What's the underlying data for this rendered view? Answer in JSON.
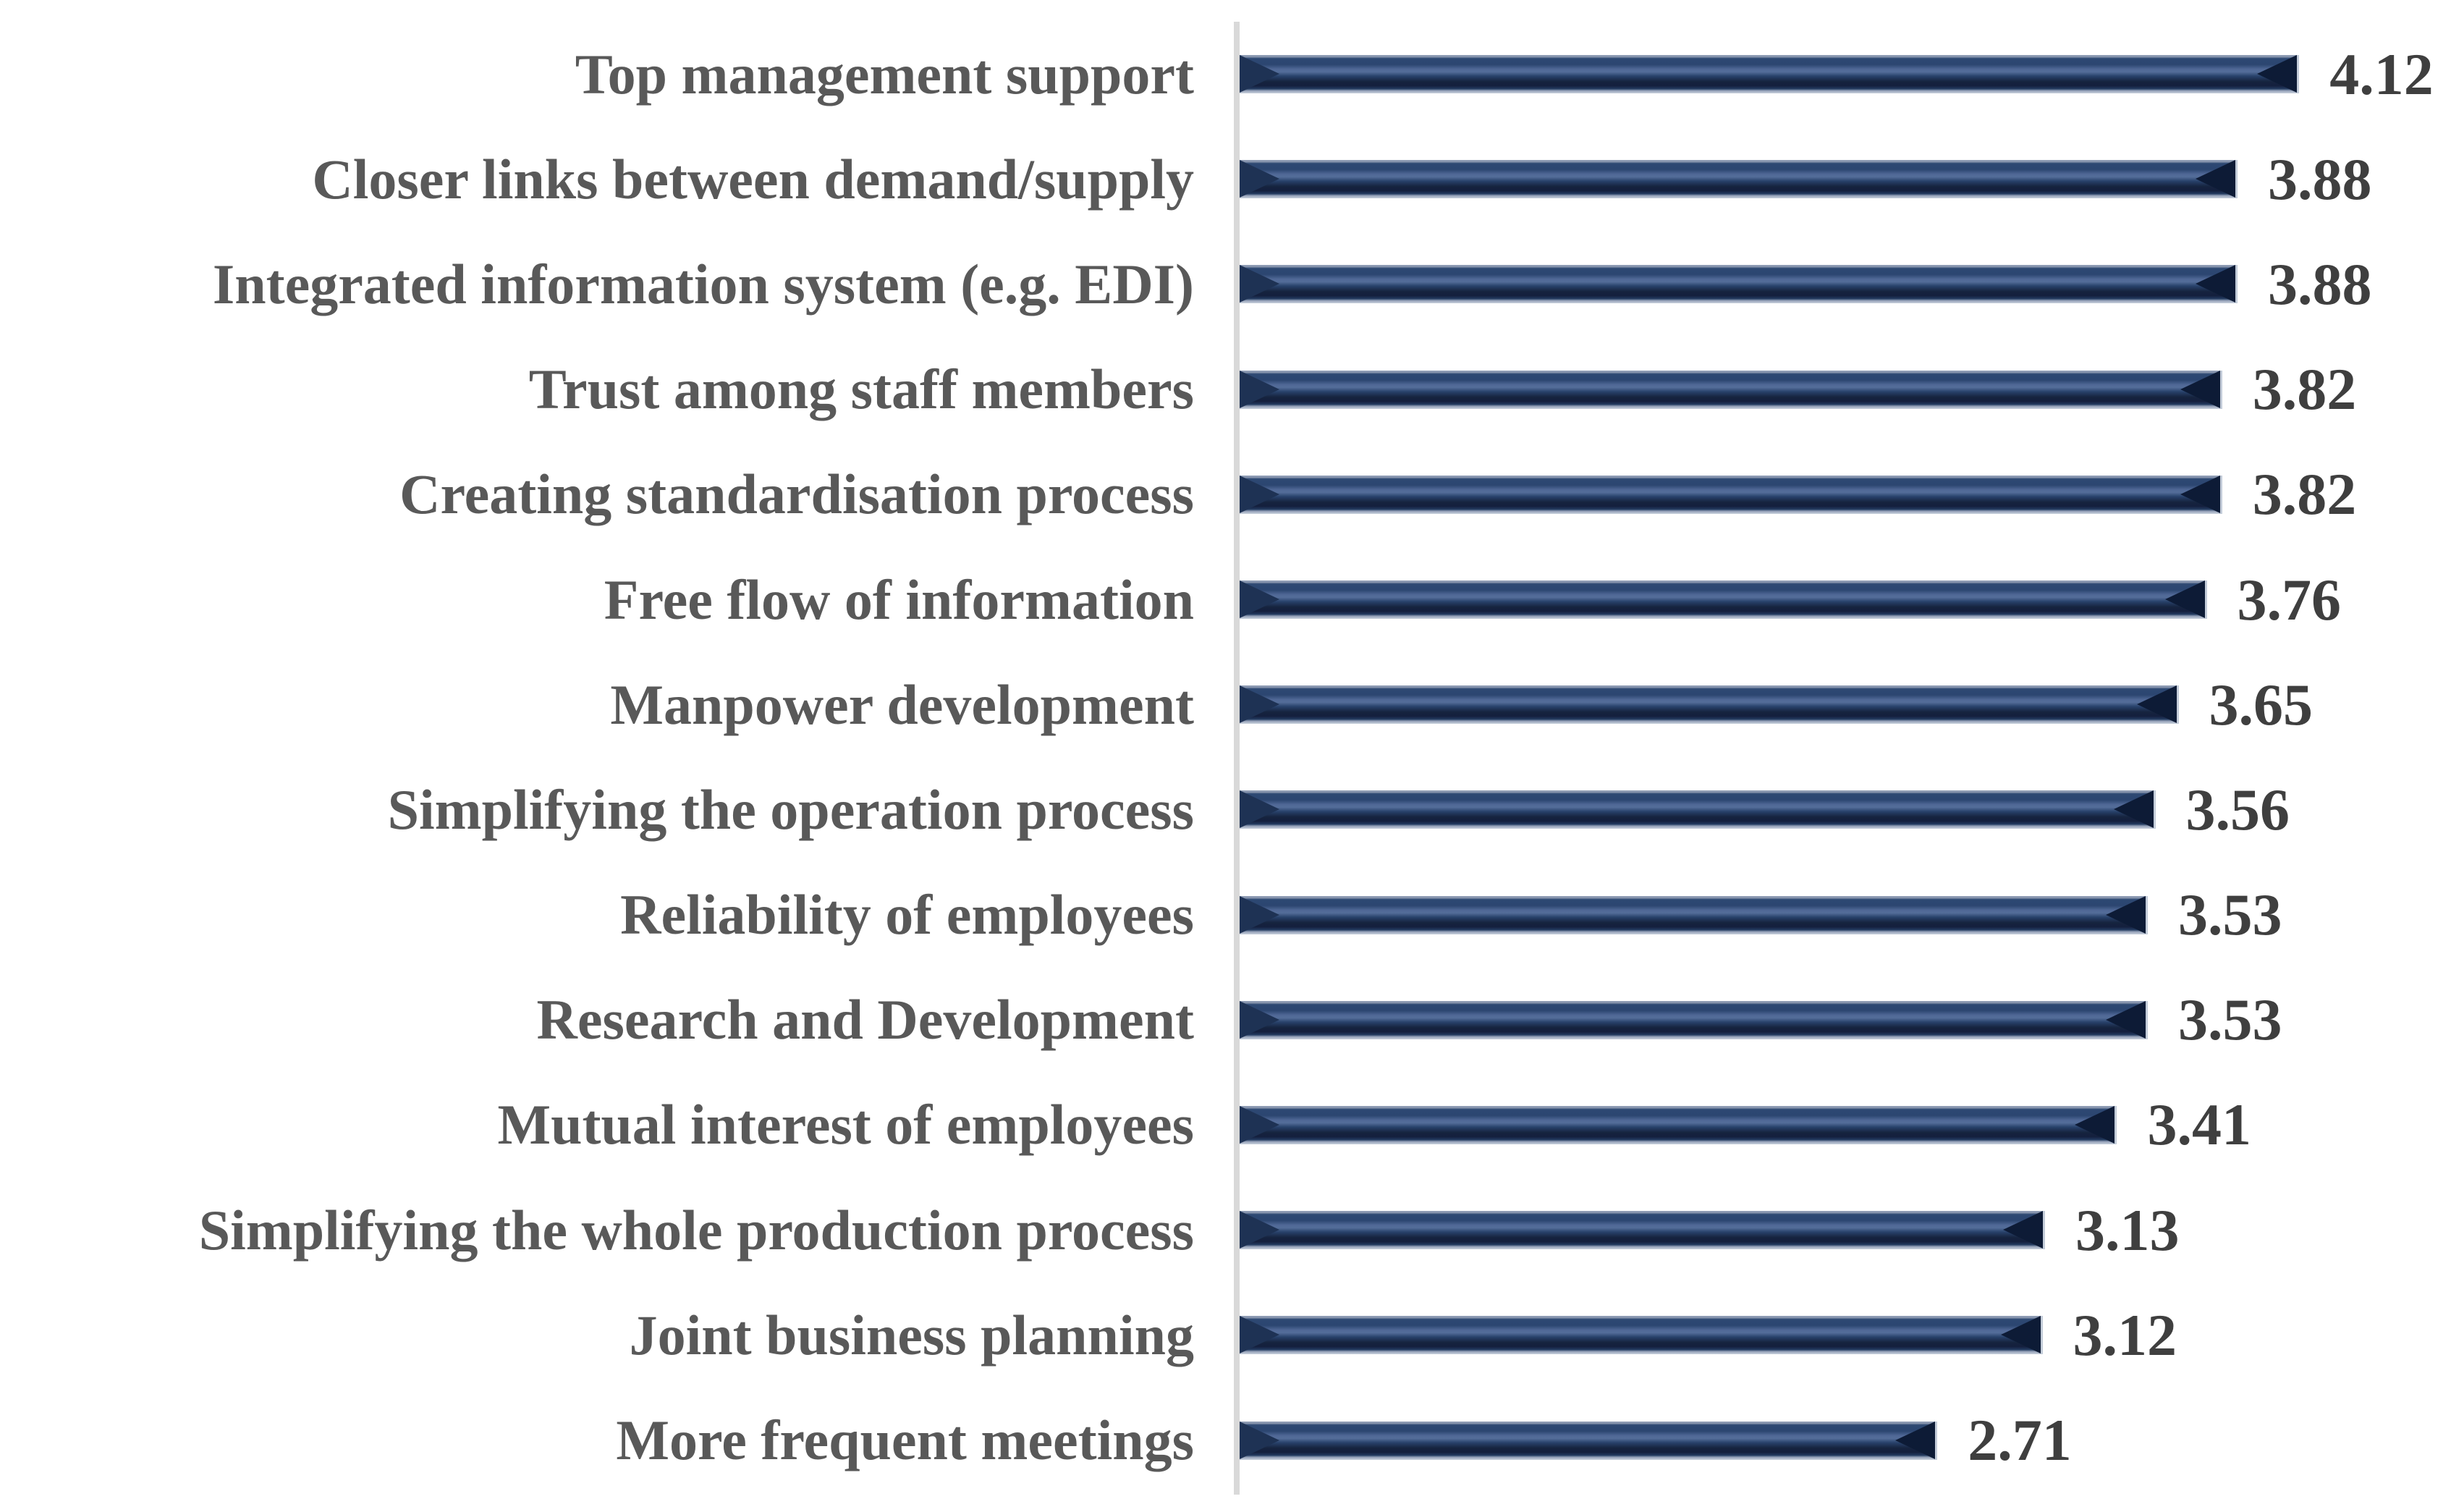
{
  "chart_data": {
    "type": "bar",
    "orientation": "horizontal",
    "title": "",
    "xlabel": "",
    "ylabel": "",
    "categories": [
      "Top management support",
      "Closer links between demand/supply",
      "Integrated information system (e.g. EDI)",
      "Trust among staff members",
      "Creating standardisation process",
      "Free flow of information",
      "Manpower development",
      "Simplifying the operation process",
      "Reliability of employees",
      "Research and Development",
      "Mutual interest of employees",
      "Simplifying the whole production process",
      "Joint business planning",
      "More frequent meetings"
    ],
    "values": [
      4.12,
      3.88,
      3.88,
      3.82,
      3.82,
      3.76,
      3.65,
      3.56,
      3.53,
      3.53,
      3.41,
      3.13,
      3.12,
      2.71
    ],
    "value_labels": [
      "4.12",
      "3.88",
      "3.88",
      "3.82",
      "3.82",
      "3.76",
      "3.65",
      "3.56",
      "3.53",
      "3.53",
      "3.41",
      "3.13",
      "3.12",
      "2.71"
    ],
    "xlim": [
      0,
      4.72
    ],
    "grid": false,
    "legend": null,
    "data_labels": "outside-end",
    "colors": {
      "bar_fill": "#1f3864",
      "bar_cap_left": "#1e3254",
      "bar_cap_right": "#0d1b36",
      "bar_edge_light": "#c3ccd9",
      "axis_line": "#d9d9d9",
      "category_label": "#595959",
      "value_label": "#3f3f3f",
      "background": "#ffffff"
    }
  }
}
